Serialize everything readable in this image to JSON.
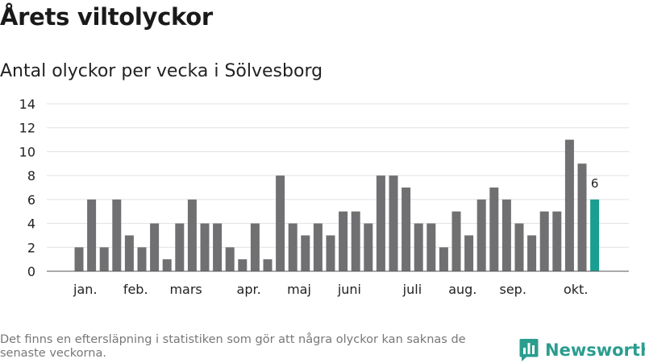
{
  "title": "Årets viltolyckor",
  "subtitle": "Antal olyckor per vecka i Sölvesborg",
  "footnote": "Det finns en eftersläpning i statistiken som gör att några olyckor kan saknas de senaste veckorna.",
  "brand": {
    "name": "Newsworthy",
    "color": "#2a9d8f"
  },
  "chart_data": {
    "type": "bar",
    "x": [
      1,
      2,
      3,
      4,
      5,
      6,
      7,
      8,
      9,
      10,
      11,
      12,
      13,
      14,
      15,
      16,
      17,
      18,
      19,
      20,
      21,
      22,
      23,
      24,
      25,
      26,
      27,
      28,
      29,
      30,
      31,
      32,
      33,
      34,
      35,
      36,
      37,
      38,
      39,
      40,
      41,
      42
    ],
    "values": [
      2,
      6,
      2,
      6,
      3,
      2,
      4,
      1,
      4,
      6,
      4,
      4,
      2,
      1,
      4,
      1,
      8,
      4,
      3,
      4,
      3,
      5,
      5,
      4,
      8,
      8,
      7,
      4,
      4,
      2,
      5,
      3,
      6,
      7,
      6,
      4,
      3,
      5,
      5,
      11,
      9,
      6
    ],
    "highlight_index": 41,
    "highlight_label": "6",
    "ylim": [
      0,
      14
    ],
    "yticks": [
      0,
      2,
      4,
      6,
      8,
      10,
      12,
      14
    ],
    "month_labels": [
      {
        "label": "jan.",
        "x": 1.5
      },
      {
        "label": "feb.",
        "x": 5.5
      },
      {
        "label": "mars",
        "x": 9.5
      },
      {
        "label": "apr.",
        "x": 14.5
      },
      {
        "label": "maj",
        "x": 18.5
      },
      {
        "label": "juni",
        "x": 22.5
      },
      {
        "label": "juli",
        "x": 27.5
      },
      {
        "label": "aug.",
        "x": 31.5
      },
      {
        "label": "sep.",
        "x": 35.5
      },
      {
        "label": "okt.",
        "x": 40.5
      }
    ],
    "colors": {
      "bar": "#707072",
      "highlight": "#1a9e91",
      "grid": "#e0e0e0",
      "axis": "#555555"
    },
    "grid": true
  }
}
